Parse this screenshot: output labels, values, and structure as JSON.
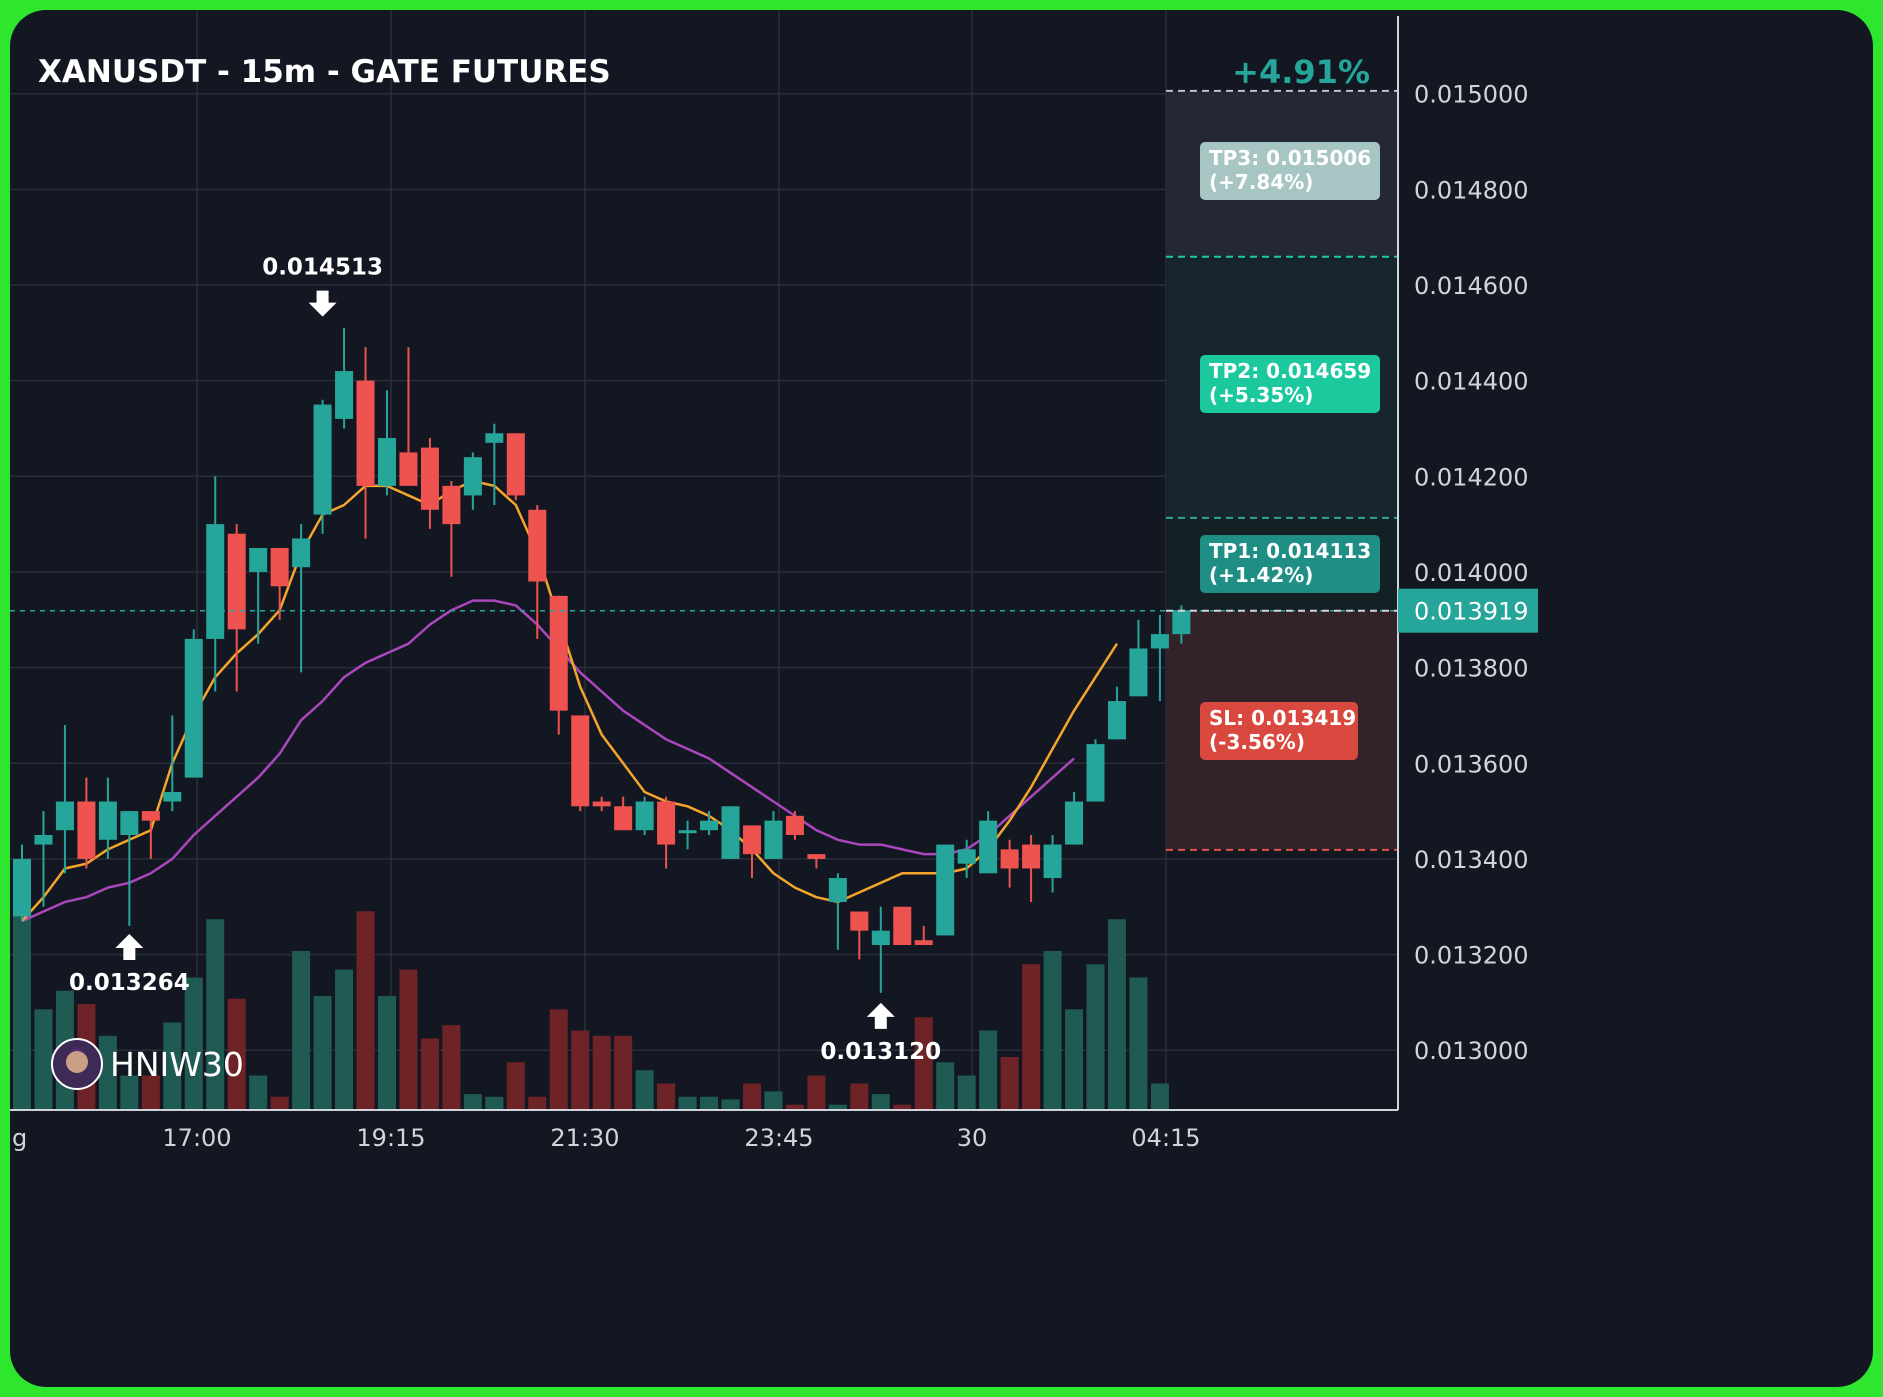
{
  "chart_data": {
    "type": "candlestick",
    "title": "XANUSDT - 15m - GATE FUTURES",
    "change_badge": "+4.91%",
    "branding": "HNIW30",
    "x_tick_labels": [
      "g",
      "17:00",
      "19:15",
      "21:30",
      "23:45",
      "30",
      "04:15"
    ],
    "y_ticks": [
      "0.015000",
      "0.014800",
      "0.014600",
      "0.014400",
      "0.014200",
      "0.014000",
      "0.013800",
      "0.013600",
      "0.013400",
      "0.013200",
      "0.013000"
    ],
    "ylim": [
      0.012875,
      0.015175
    ],
    "current_price": "0.013919",
    "targets": [
      {
        "label": "TP3: 0.015006",
        "pct": "(+7.84%)",
        "price": 0.015006
      },
      {
        "label": "TP2: 0.014659",
        "pct": "(+5.35%)",
        "price": 0.014659
      },
      {
        "label": "TP1: 0.014113",
        "pct": "(+1.42%)",
        "price": 0.014113
      },
      {
        "label": "SL: 0.013419",
        "pct": "(-3.56%)",
        "price": 0.013419
      }
    ],
    "annotations": [
      {
        "text": "0.013264",
        "candle": 5,
        "price": 0.013264,
        "dir": "up"
      },
      {
        "text": "0.014513",
        "candle": 14,
        "price": 0.014513,
        "dir": "down"
      },
      {
        "text": "0.013120",
        "candle": 40,
        "price": 0.01312,
        "dir": "up"
      }
    ],
    "candles": [
      [
        0.01328,
        0.0134,
        0.01343,
        0.01327
      ],
      [
        0.01343,
        0.01345,
        0.0135,
        0.0133
      ],
      [
        0.01346,
        0.01352,
        0.01368,
        0.01337
      ],
      [
        0.01352,
        0.0134,
        0.01357,
        0.01338
      ],
      [
        0.01344,
        0.01352,
        0.01357,
        0.0134
      ],
      [
        0.01345,
        0.0135,
        0.0135,
        0.01326
      ],
      [
        0.0135,
        0.01348,
        0.0135,
        0.0134
      ],
      [
        0.01352,
        0.01354,
        0.0137,
        0.0135
      ],
      [
        0.01357,
        0.01386,
        0.01388,
        0.01357
      ],
      [
        0.01386,
        0.0141,
        0.0142,
        0.01375
      ],
      [
        0.01408,
        0.01388,
        0.0141,
        0.01375
      ],
      [
        0.014,
        0.01405,
        0.01405,
        0.01385
      ],
      [
        0.01405,
        0.01397,
        0.01405,
        0.0139
      ],
      [
        0.01401,
        0.01407,
        0.0141,
        0.01379
      ],
      [
        0.01412,
        0.01435,
        0.01436,
        0.01408
      ],
      [
        0.01432,
        0.01442,
        0.01451,
        0.0143
      ],
      [
        0.0144,
        0.01418,
        0.01447,
        0.01407
      ],
      [
        0.01418,
        0.01428,
        0.01438,
        0.01416
      ],
      [
        0.01425,
        0.01418,
        0.01447,
        0.01418
      ],
      [
        0.01426,
        0.01413,
        0.01428,
        0.01409
      ],
      [
        0.01418,
        0.0141,
        0.01419,
        0.01399
      ],
      [
        0.01416,
        0.01424,
        0.01425,
        0.01413
      ],
      [
        0.01427,
        0.01429,
        0.01431,
        0.01414
      ],
      [
        0.01429,
        0.01416,
        0.01429,
        0.01415
      ],
      [
        0.01413,
        0.01398,
        0.01414,
        0.01386
      ],
      [
        0.01395,
        0.01371,
        0.01395,
        0.01366
      ],
      [
        0.0137,
        0.01351,
        0.0137,
        0.0135
      ],
      [
        0.01352,
        0.01351,
        0.01353,
        0.0135
      ],
      [
        0.01351,
        0.01346,
        0.01353,
        0.01346
      ],
      [
        0.01346,
        0.01352,
        0.01353,
        0.01345
      ],
      [
        0.01352,
        0.01343,
        0.01353,
        0.01338
      ],
      [
        0.01346,
        0.01346,
        0.01348,
        0.01342
      ],
      [
        0.01346,
        0.01348,
        0.0135,
        0.01345
      ],
      [
        0.0134,
        0.01351,
        0.01351,
        0.0134
      ],
      [
        0.01347,
        0.01341,
        0.01347,
        0.01336
      ],
      [
        0.0134,
        0.01348,
        0.0135,
        0.0134
      ],
      [
        0.01349,
        0.01345,
        0.0135,
        0.01344
      ],
      [
        0.01341,
        0.0134,
        0.01341,
        0.01338
      ],
      [
        0.01331,
        0.01336,
        0.01337,
        0.01321
      ],
      [
        0.01329,
        0.01325,
        0.01329,
        0.01319
      ],
      [
        0.01322,
        0.01325,
        0.0133,
        0.01312
      ],
      [
        0.0133,
        0.01322,
        0.0133,
        0.01322
      ],
      [
        0.01323,
        0.01322,
        0.01326,
        0.01322
      ],
      [
        0.01324,
        0.01343,
        0.01343,
        0.01324
      ],
      [
        0.01339,
        0.01342,
        0.01344,
        0.01336
      ],
      [
        0.01337,
        0.01348,
        0.0135,
        0.01337
      ],
      [
        0.01342,
        0.01338,
        0.01344,
        0.01334
      ],
      [
        0.01343,
        0.01338,
        0.01345,
        0.01331
      ],
      [
        0.01336,
        0.01343,
        0.01345,
        0.01333
      ],
      [
        0.01343,
        0.01352,
        0.01354,
        0.01343
      ],
      [
        0.01352,
        0.01364,
        0.01365,
        0.01352
      ],
      [
        0.01365,
        0.01373,
        0.01376,
        0.01365
      ],
      [
        0.01374,
        0.01384,
        0.0139,
        0.01374
      ],
      [
        0.01384,
        0.01387,
        0.01391,
        0.01373
      ],
      [
        0.01387,
        0.01392,
        0.01393,
        0.01385
      ]
    ],
    "ema_fast": [
      0.01327,
      0.01332,
      0.01338,
      0.01339,
      0.01342,
      0.01344,
      0.01346,
      0.0136,
      0.0137,
      0.01378,
      0.01383,
      0.01387,
      0.01392,
      0.01404,
      0.01412,
      0.01414,
      0.01418,
      0.01418,
      0.01416,
      0.01414,
      0.01417,
      0.01419,
      0.01418,
      0.01414,
      0.01404,
      0.0139,
      0.01376,
      0.01366,
      0.0136,
      0.01354,
      0.01352,
      0.01351,
      0.01349,
      0.01346,
      0.01342,
      0.01337,
      0.01334,
      0.01332,
      0.01331,
      0.01333,
      0.01335,
      0.01337,
      0.01337,
      0.01337,
      0.01338,
      0.01342,
      0.01348,
      0.01355,
      0.01363,
      0.01371,
      0.01378,
      0.01385
    ],
    "ema_slow": [
      0.01327,
      0.01329,
      0.01331,
      0.01332,
      0.01334,
      0.01335,
      0.01337,
      0.0134,
      0.01345,
      0.01349,
      0.01353,
      0.01357,
      0.01362,
      0.01369,
      0.01373,
      0.01378,
      0.01381,
      0.01383,
      0.01385,
      0.01389,
      0.01392,
      0.01394,
      0.01394,
      0.01393,
      0.01389,
      0.01384,
      0.01379,
      0.01375,
      0.01371,
      0.01368,
      0.01365,
      0.01363,
      0.01361,
      0.01358,
      0.01355,
      0.01352,
      0.01349,
      0.01346,
      0.01344,
      0.01343,
      0.01343,
      0.01342,
      0.01341,
      0.01341,
      0.01342,
      0.01345,
      0.01349,
      0.01353,
      0.01357,
      0.01361
    ],
    "volume": [
      0.75,
      0.38,
      0.45,
      0.4,
      0.28,
      0.13,
      0.13,
      0.33,
      0.5,
      0.72,
      0.42,
      0.13,
      0.05,
      0.6,
      0.43,
      0.53,
      0.75,
      0.43,
      0.53,
      0.27,
      0.32,
      0.06,
      0.05,
      0.18,
      0.05,
      0.38,
      0.3,
      0.28,
      0.28,
      0.15,
      0.1,
      0.05,
      0.05,
      0.04,
      0.1,
      0.07,
      0.02,
      0.13,
      0.02,
      0.1,
      0.06,
      0.02,
      0.35,
      0.18,
      0.13,
      0.3,
      0.2,
      0.55,
      0.6,
      0.38,
      0.55,
      0.72,
      0.5,
      0.1
    ]
  }
}
